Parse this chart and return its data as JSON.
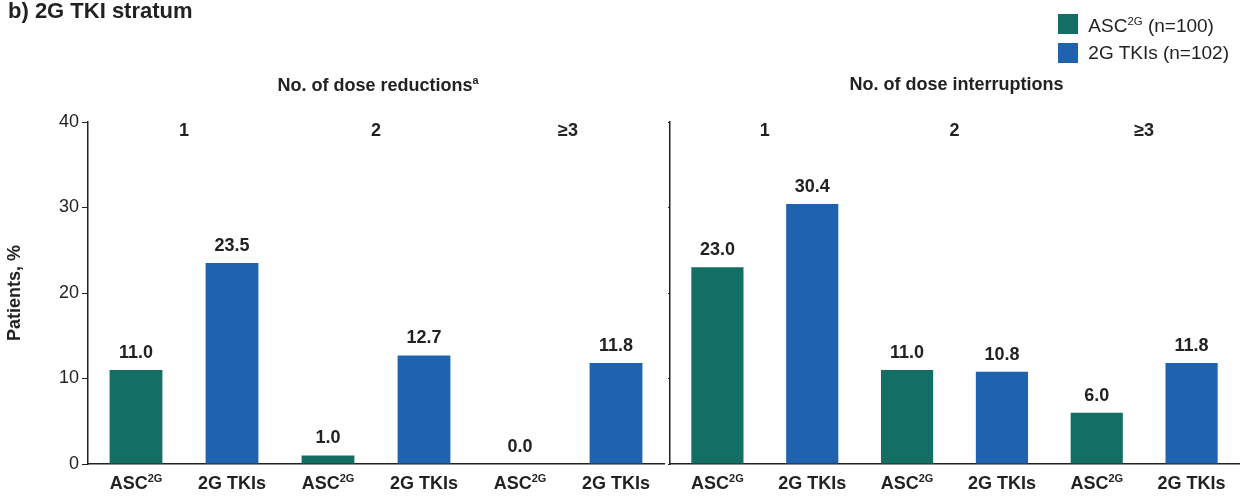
{
  "chart_data": [
    {
      "type": "bar",
      "title": "b) 2G TKI stratum",
      "subtitle": "No. of dose reductions$^{a}$",
      "ylabel": "Patients, %",
      "categories": [
        "ASC$^{2G}$",
        "2G TKIs",
        "ASC$^{2G}$",
        "2G TKIs",
        "ASC$^{2G}$",
        "2G TKIs"
      ],
      "series": [
        {
          "color": "#136f63",
          "values": [
            11.0,
            null,
            1.0,
            null,
            0.0,
            null
          ],
          "value_labels": [
            "11.0",
            null,
            "1.0",
            null,
            "0.0",
            null
          ]
        },
        {
          "color": "#1f62ae",
          "values": [
            null,
            23.5,
            null,
            12.7,
            null,
            11.8
          ],
          "value_labels": [
            null,
            "23.5",
            null,
            "12.7",
            null,
            "11.8"
          ]
        }
      ],
      "stacked": true,
      "ylim": [
        0,
        40
      ],
      "yticks": [
        0,
        10,
        20,
        30,
        40
      ],
      "grid": false,
      "legend": false,
      "annotations": [
        "1",
        "2",
        "≥3"
      ]
    },
    {
      "type": "bar",
      "subtitle": "No. of dose interruptions",
      "categories": [
        "ASC$^{2G}$",
        "2G TKIs",
        "ASC$^{2G}$",
        "2G TKIs",
        "ASC$^{2G}$",
        "2G TKIs"
      ],
      "series": [
        {
          "name": "ASC$^{2G}$ (n=100)",
          "color": "#136f63",
          "values": [
            23.0,
            null,
            11.0,
            null,
            6.0,
            null
          ],
          "value_labels": [
            "23.0",
            null,
            "11.0",
            null,
            "6.0",
            null
          ]
        },
        {
          "name": "2G TKIs (n=102)",
          "color": "#1f62ae",
          "values": [
            null,
            30.4,
            null,
            10.8,
            null,
            11.8
          ],
          "value_labels": [
            null,
            "30.4",
            null,
            "10.8",
            null,
            "11.8"
          ]
        }
      ],
      "stacked": true,
      "ylim": [
        0,
        40
      ],
      "yticks": [
        0,
        10,
        20,
        30,
        40
      ],
      "grid": false,
      "legend": "top right",
      "tick_labels": "x",
      "annotations": [
        "1",
        "2",
        "≥3"
      ]
    }
  ]
}
